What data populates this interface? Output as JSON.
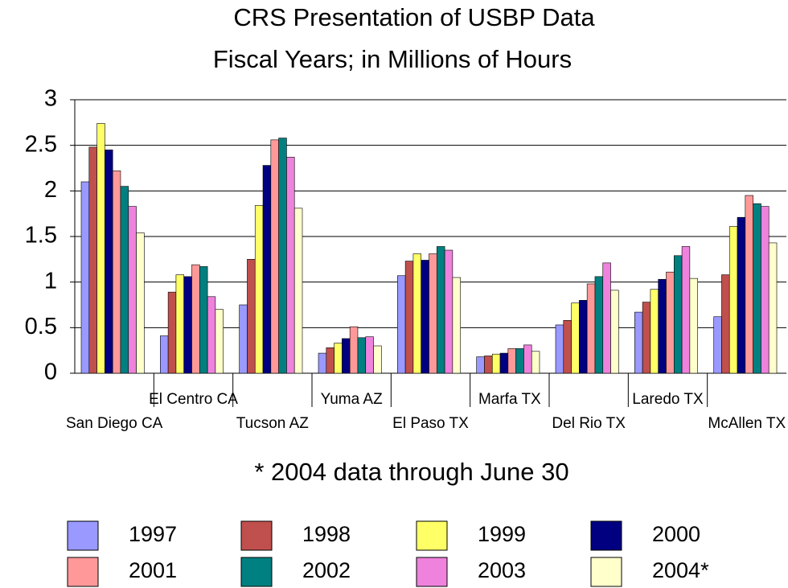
{
  "chart_data": {
    "type": "bar",
    "title": "CRS Presentation of USBP Data",
    "subtitle": "Fiscal Years; in Millions of Hours",
    "annotation": "* 2004 data through June 30",
    "categories": [
      "San Diego CA",
      "El Centro CA",
      "Tucson AZ",
      "Yuma AZ",
      "El Paso TX",
      "Marfa TX",
      "Del Rio TX",
      "Laredo TX",
      "McAllen TX"
    ],
    "series": [
      {
        "name": "1997",
        "color": "#9999ff",
        "values": [
          2.1,
          0.41,
          0.75,
          0.22,
          1.07,
          0.18,
          0.53,
          0.67,
          0.62
        ]
      },
      {
        "name": "1998",
        "color": "#c0504d",
        "values": [
          2.48,
          0.89,
          1.25,
          0.28,
          1.23,
          0.19,
          0.58,
          0.78,
          1.08
        ]
      },
      {
        "name": "1999",
        "color": "#ffff66",
        "values": [
          2.74,
          1.08,
          1.84,
          0.33,
          1.31,
          0.21,
          0.77,
          0.92,
          1.61
        ]
      },
      {
        "name": "2000",
        "color": "#000080",
        "values": [
          2.45,
          1.06,
          2.28,
          0.38,
          1.24,
          0.22,
          0.8,
          1.03,
          1.71
        ]
      },
      {
        "name": "2001",
        "color": "#ff9999",
        "values": [
          2.22,
          1.19,
          2.56,
          0.51,
          1.31,
          0.27,
          0.98,
          1.11,
          1.95
        ]
      },
      {
        "name": "2002",
        "color": "#008080",
        "values": [
          2.05,
          1.17,
          2.58,
          0.39,
          1.39,
          0.27,
          1.06,
          1.29,
          1.86
        ]
      },
      {
        "name": "2003",
        "color": "#ee82dd",
        "values": [
          1.83,
          0.84,
          2.37,
          0.4,
          1.35,
          0.31,
          1.21,
          1.39,
          1.83
        ]
      },
      {
        "name": "2004*",
        "color": "#ffffcc",
        "values": [
          1.54,
          0.7,
          1.81,
          0.3,
          1.05,
          0.24,
          0.91,
          1.04,
          1.43
        ]
      }
    ],
    "ylim": [
      0,
      3
    ],
    "yticks": [
      0,
      0.5,
      1,
      1.5,
      2,
      2.5,
      3
    ],
    "grid": true
  }
}
